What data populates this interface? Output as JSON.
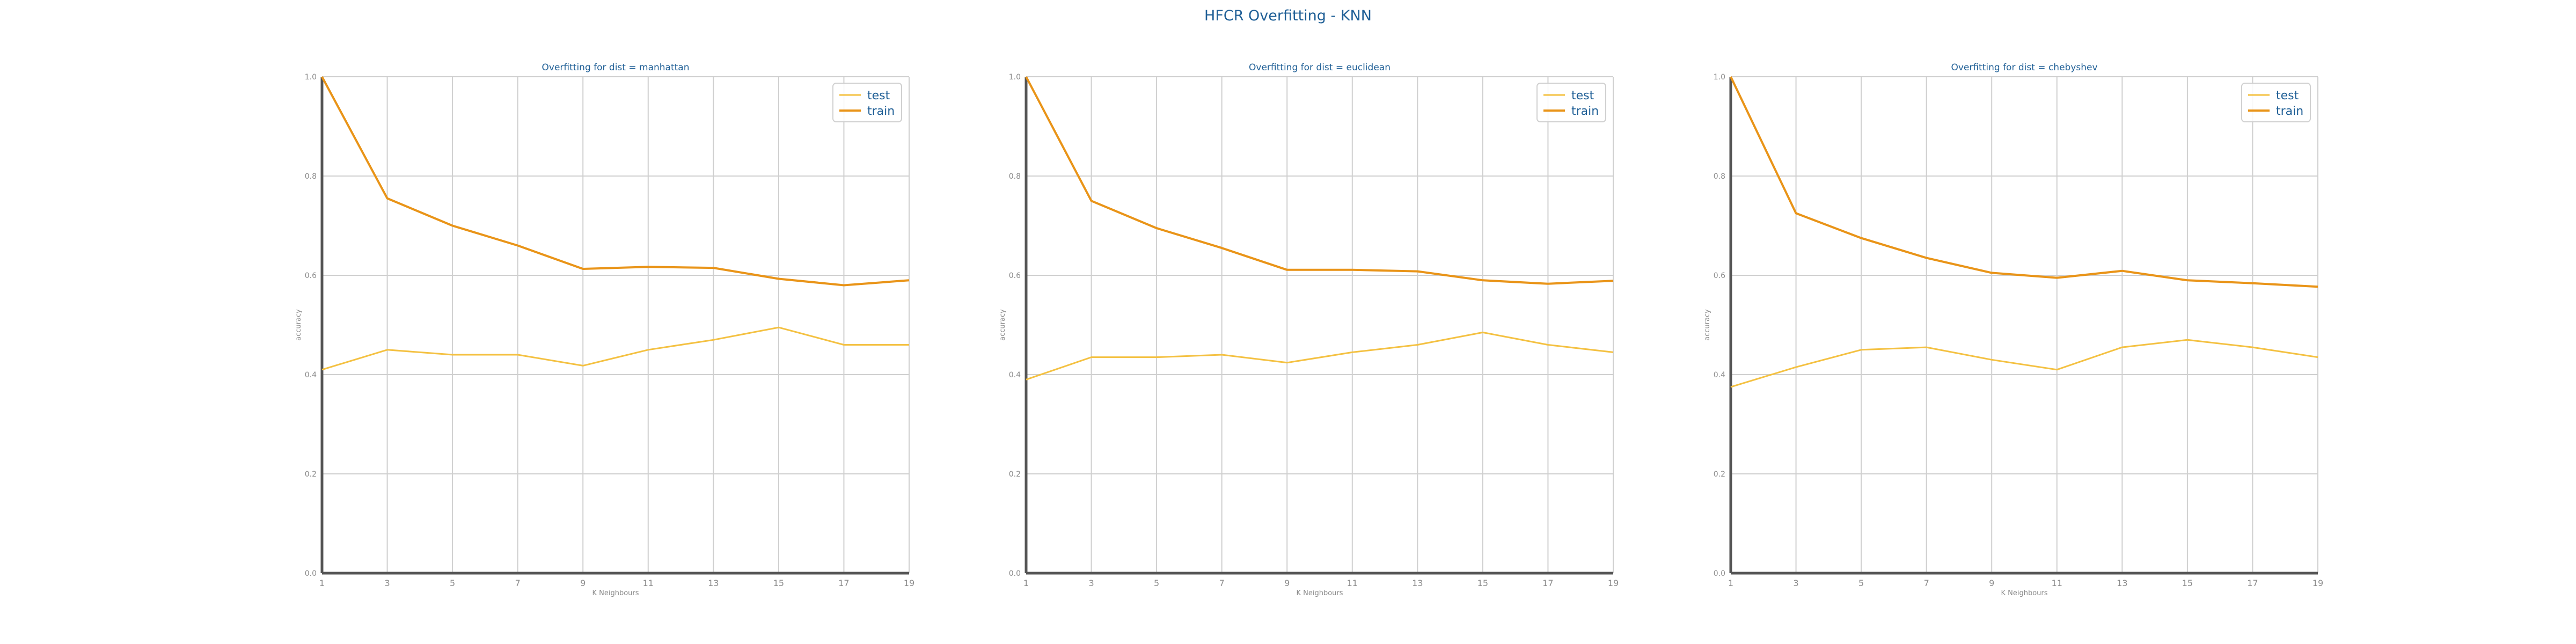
{
  "figure": {
    "title": "HFCR Overfitting - KNN",
    "colors": {
      "title": "#1f5f96",
      "test": "#f4c142",
      "train": "#e99418",
      "grid": "#cfcfcf",
      "axis": "#555555",
      "tick": "#8c8c8c"
    }
  },
  "chart_data": [
    {
      "type": "line",
      "title": "Overfitting for dist = manhattan",
      "xlabel": "K Neighbours",
      "ylabel": "accuracy",
      "x": [
        1,
        3,
        5,
        7,
        9,
        11,
        13,
        15,
        17,
        19
      ],
      "ylim": [
        0.0,
        1.0
      ],
      "yticks": [
        "0.0",
        "0.2",
        "0.4",
        "0.6",
        "0.8",
        "1.0"
      ],
      "grid": true,
      "legend_position": "top-right",
      "series": [
        {
          "name": "test",
          "values": [
            0.41,
            0.45,
            0.44,
            0.44,
            0.418,
            0.45,
            0.47,
            0.495,
            0.46,
            0.46
          ]
        },
        {
          "name": "train",
          "values": [
            1.0,
            0.755,
            0.7,
            0.66,
            0.613,
            0.617,
            0.615,
            0.593,
            0.58,
            0.59
          ]
        }
      ]
    },
    {
      "type": "line",
      "title": "Overfitting for dist = euclidean",
      "xlabel": "K Neighbours",
      "ylabel": "accuracy",
      "x": [
        1,
        3,
        5,
        7,
        9,
        11,
        13,
        15,
        17,
        19
      ],
      "ylim": [
        0.0,
        1.0
      ],
      "yticks": [
        "0.0",
        "0.2",
        "0.4",
        "0.6",
        "0.8",
        "1.0"
      ],
      "grid": true,
      "legend_position": "top-right",
      "series": [
        {
          "name": "test",
          "values": [
            0.39,
            0.435,
            0.435,
            0.44,
            0.424,
            0.445,
            0.46,
            0.485,
            0.46,
            0.445
          ]
        },
        {
          "name": "train",
          "values": [
            1.0,
            0.75,
            0.695,
            0.655,
            0.611,
            0.611,
            0.608,
            0.59,
            0.583,
            0.589
          ]
        }
      ]
    },
    {
      "type": "line",
      "title": "Overfitting for dist = chebyshev",
      "xlabel": "K Neighbours",
      "ylabel": "accuracy",
      "x": [
        1,
        3,
        5,
        7,
        9,
        11,
        13,
        15,
        17,
        19
      ],
      "ylim": [
        0.0,
        1.0
      ],
      "yticks": [
        "0.0",
        "0.2",
        "0.4",
        "0.6",
        "0.8",
        "1.0"
      ],
      "grid": true,
      "legend_position": "top-right",
      "series": [
        {
          "name": "test",
          "values": [
            0.375,
            0.415,
            0.45,
            0.455,
            0.43,
            0.41,
            0.455,
            0.47,
            0.455,
            0.435
          ]
        },
        {
          "name": "train",
          "values": [
            1.0,
            0.725,
            0.675,
            0.635,
            0.605,
            0.595,
            0.609,
            0.59,
            0.584,
            0.577
          ]
        }
      ]
    }
  ]
}
